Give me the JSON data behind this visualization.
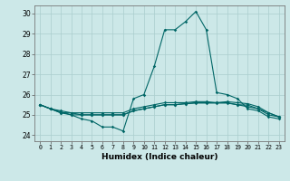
{
  "xlabel": "Humidex (Indice chaleur)",
  "bg_color": "#cce8e8",
  "line_color": "#006666",
  "grid_color": "#aacece",
  "xlim": [
    -0.5,
    23.5
  ],
  "ylim": [
    23.7,
    30.4
  ],
  "yticks": [
    24,
    25,
    26,
    27,
    28,
    29,
    30
  ],
  "xticks": [
    0,
    1,
    2,
    3,
    4,
    5,
    6,
    7,
    8,
    9,
    10,
    11,
    12,
    13,
    14,
    15,
    16,
    17,
    18,
    19,
    20,
    21,
    22,
    23
  ],
  "series": [
    [
      25.5,
      25.3,
      25.1,
      25.0,
      24.8,
      24.7,
      24.4,
      24.4,
      24.2,
      25.8,
      26.0,
      27.4,
      29.2,
      29.2,
      29.6,
      30.1,
      29.2,
      26.1,
      26.0,
      25.8,
      25.3,
      25.2,
      24.9,
      24.8
    ],
    [
      25.5,
      25.3,
      25.1,
      25.1,
      25.0,
      25.0,
      25.0,
      25.0,
      25.0,
      25.2,
      25.3,
      25.4,
      25.5,
      25.5,
      25.55,
      25.6,
      25.6,
      25.6,
      25.6,
      25.5,
      25.4,
      25.3,
      25.0,
      24.9
    ],
    [
      25.5,
      25.3,
      25.2,
      25.1,
      25.1,
      25.1,
      25.1,
      25.1,
      25.1,
      25.3,
      25.4,
      25.5,
      25.6,
      25.6,
      25.6,
      25.65,
      25.65,
      25.6,
      25.65,
      25.6,
      25.55,
      25.4,
      25.1,
      24.9
    ],
    [
      25.5,
      25.3,
      25.15,
      25.0,
      25.0,
      25.0,
      25.0,
      25.0,
      25.0,
      25.2,
      25.3,
      25.4,
      25.5,
      25.5,
      25.55,
      25.58,
      25.58,
      25.58,
      25.58,
      25.5,
      25.48,
      25.3,
      25.1,
      24.9
    ]
  ]
}
